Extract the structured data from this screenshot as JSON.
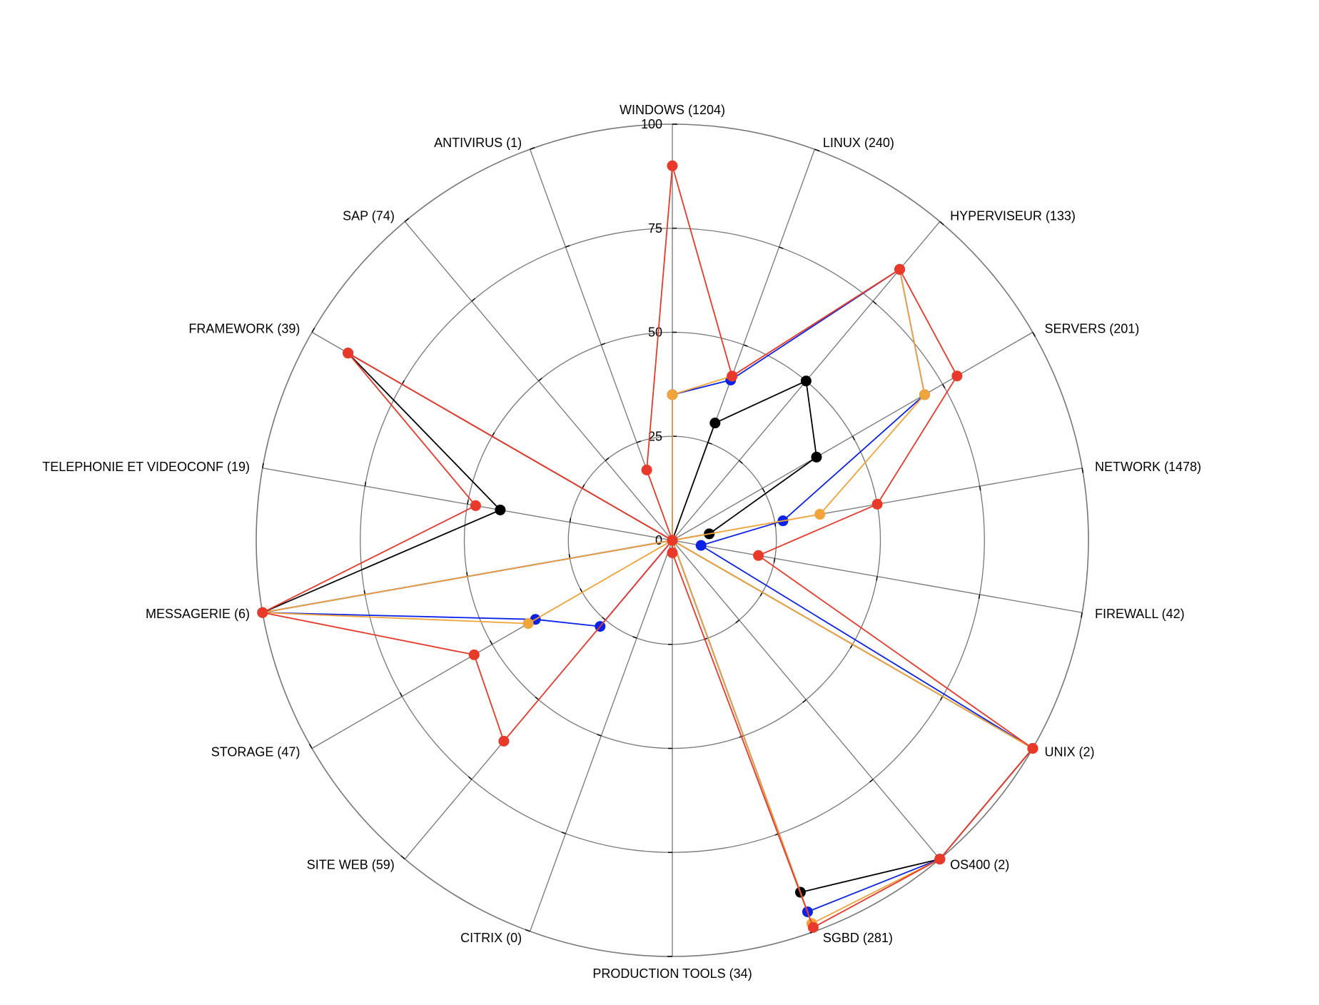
{
  "chart_data": {
    "type": "radar",
    "title": "",
    "rlim": [
      0,
      100
    ],
    "r_ticks": [
      "0",
      "25",
      "50",
      "75",
      "100"
    ],
    "grid": true,
    "legend": "none",
    "categories": [
      "WINDOWS  (1204)",
      "LINUX  (240)",
      "HYPERVISEUR  (133)",
      "SERVERS  (201)",
      "NETWORK  (1478)",
      "FIREWALL  (42)",
      "UNIX  (2)",
      "OS400  (2)",
      "SGBD  (281)",
      "PRODUCTION TOOLS  (34)",
      "CITRIX  (0)",
      "SITE WEB  (59)",
      "STORAGE  (47)",
      "MESSAGERIE  (6)",
      "TELEPHONIE ET VIDEOCONF  (19)",
      "FRAMEWORK  (39)",
      "SAP  (74)",
      "ANTIVIRUS  (1)"
    ],
    "series": [
      {
        "color": "#000000",
        "values": [
          0,
          30,
          50,
          40,
          9,
          0,
          100,
          100,
          90,
          0,
          0,
          0,
          0,
          100,
          42,
          90,
          0,
          0
        ]
      },
      {
        "color": "#0a22e8",
        "values": [
          35,
          41,
          85,
          70,
          27,
          7,
          100,
          100,
          95,
          0,
          0,
          27,
          38,
          100,
          0,
          90,
          0,
          0
        ]
      },
      {
        "color": "#f0a43a",
        "values": [
          35,
          42,
          85,
          70,
          36,
          0,
          100,
          100,
          98,
          0,
          0,
          0,
          40,
          100,
          0,
          90,
          0,
          0
        ]
      },
      {
        "color": "#e8392a",
        "values": [
          90,
          42,
          85,
          79,
          50,
          21,
          100,
          100,
          99,
          3,
          0,
          63,
          55,
          100,
          48,
          90,
          0,
          18
        ]
      }
    ]
  }
}
